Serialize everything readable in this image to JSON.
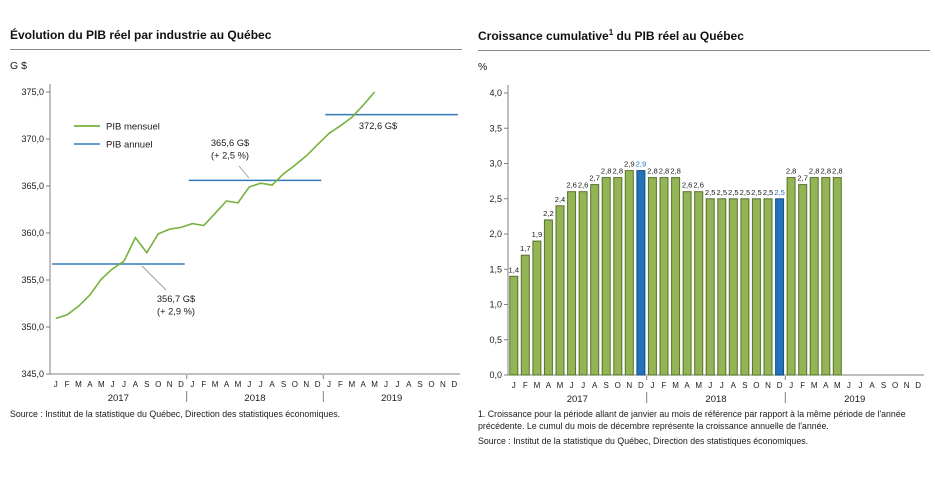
{
  "left": {
    "title": "Évolution du PIB réel par industrie au Québec",
    "unit": "G $",
    "source": "Source : Institut de la statistique du Québec, Direction des statistiques économiques."
  },
  "right": {
    "title_pre": "Croissance cumulative",
    "title_sup": "1",
    "title_post": " du PIB réel au Québec",
    "unit": "%",
    "footnote": "1. Croissance pour la période allant de janvier au mois de référence par rapport à la même période de l'année précédente. Le cumul du mois de décembre représente la croissance annuelle de l'année.",
    "source": "Source : Institut de la statistique du Québec, Direction des statistiques économiques."
  },
  "chart_data": [
    {
      "type": "line",
      "title": "Évolution du PIB réel par industrie au Québec",
      "ylabel": "G $",
      "ylim": [
        345,
        375
      ],
      "ytick_step": 5,
      "ytick_labels": [
        "345,0",
        "350,0",
        "355,0",
        "360,0",
        "365,0",
        "370,0",
        "375,0"
      ],
      "months": [
        "J",
        "F",
        "M",
        "A",
        "M",
        "J",
        "J",
        "A",
        "S",
        "O",
        "N",
        "D"
      ],
      "years": [
        "2017",
        "2018",
        "2019"
      ],
      "legend": [
        {
          "label": "PIB mensuel",
          "color": "#77b23f"
        },
        {
          "label": "PIB annuel",
          "color": "#3579b5"
        }
      ],
      "series": [
        {
          "name": "PIB mensuel",
          "color": "#77b23f",
          "values": [
            350.9,
            351.3,
            352.2,
            353.4,
            355.1,
            356.2,
            357.0,
            359.5,
            357.9,
            359.9,
            360.4,
            360.6,
            361.0,
            360.8,
            362.1,
            363.4,
            363.2,
            364.9,
            365.3,
            365.1,
            366.3,
            367.2,
            368.2,
            369.4,
            370.6,
            371.4,
            372.3,
            373.6,
            375.0
          ]
        },
        {
          "name": "PIB annuel",
          "color": "#3579b5",
          "values_by_year": [
            356.7,
            365.6,
            372.6
          ]
        }
      ],
      "annotations": [
        {
          "lines": [
            "356,7 G$",
            "(+ 2,9 %)"
          ],
          "x": 166,
          "y": 228,
          "leader": [
            156,
            216,
            132,
            192
          ]
        },
        {
          "lines": [
            "365,6 G$",
            "(+ 2,5 %)"
          ],
          "x": 220,
          "y": 72,
          "leader": [
            229,
            92,
            239,
            104
          ]
        },
        {
          "lines": [
            "372,6 G$"
          ],
          "x": 368,
          "y": 55,
          "leader": null
        }
      ]
    },
    {
      "type": "bar",
      "title": "Croissance cumulative¹ du PIB réel au Québec",
      "ylabel": "%",
      "ylim": [
        0,
        4
      ],
      "ytick_step": 0.5,
      "ytick_labels": [
        "0,0",
        "0,5",
        "1,0",
        "1,5",
        "2,0",
        "2,5",
        "3,0",
        "3,5",
        "4,0"
      ],
      "months": [
        "J",
        "F",
        "M",
        "A",
        "M",
        "J",
        "J",
        "A",
        "S",
        "O",
        "N",
        "D"
      ],
      "years": [
        "2017",
        "2018",
        "2019"
      ],
      "value_labels": [
        "1,4",
        "1,7",
        "1,9",
        "2,2",
        "2,4",
        "2,6",
        "2,6",
        "2,7",
        "2,8",
        "2,8",
        "2,9",
        "2,9",
        "2,8",
        "2,8",
        "2,8",
        "2,6",
        "2,6",
        "2,5",
        "2,5",
        "2,5",
        "2,5",
        "2,5",
        "2,5",
        "2,5",
        "2,8",
        "2,7",
        "2,8",
        "2,8",
        "2,8"
      ],
      "highlight_indices": [
        11,
        23
      ],
      "bar_color": "#94b554",
      "bar_border": "#55702c",
      "highlight_color": "#2172b8",
      "highlight_border": "#174f80"
    }
  ]
}
